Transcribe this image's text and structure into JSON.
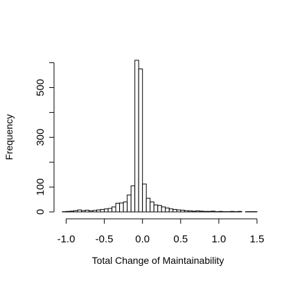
{
  "chart_data": {
    "type": "bar",
    "subtype": "histogram",
    "title": "",
    "xlabel": "Total Change of Maintainability",
    "ylabel": "Frequency",
    "bin_width": 0.05,
    "bin_starts": [
      -1.05,
      -1.0,
      -0.95,
      -0.9,
      -0.85,
      -0.8,
      -0.75,
      -0.7,
      -0.65,
      -0.6,
      -0.55,
      -0.5,
      -0.45,
      -0.4,
      -0.35,
      -0.3,
      -0.25,
      -0.2,
      -0.15,
      -0.1,
      -0.05,
      0.0,
      0.05,
      0.1,
      0.15,
      0.2,
      0.25,
      0.3,
      0.35,
      0.4,
      0.45,
      0.5,
      0.55,
      0.6,
      0.65,
      0.7,
      0.75,
      0.8,
      0.85,
      0.9,
      0.95,
      1.0,
      1.05,
      1.1,
      1.15,
      1.2,
      1.25,
      1.3,
      1.35,
      1.4,
      1.45
    ],
    "values": [
      1,
      2,
      3,
      5,
      8,
      5,
      7,
      4,
      6,
      8,
      10,
      12,
      14,
      20,
      35,
      36,
      40,
      68,
      105,
      610,
      575,
      112,
      55,
      40,
      28,
      26,
      20,
      16,
      12,
      10,
      8,
      7,
      5,
      4,
      3,
      4,
      3,
      2,
      2,
      3,
      1,
      2,
      1,
      1,
      2,
      1,
      2,
      0,
      1,
      1,
      1
    ],
    "x_ticks": [
      -1.0,
      -0.5,
      0.0,
      0.5,
      1.0,
      1.5
    ],
    "x_tick_labels": [
      "-1.0",
      "-0.5",
      "0.0",
      "0.5",
      "1.0",
      "1.5"
    ],
    "xlim": [
      -1.05,
      1.5
    ],
    "y_ticks": [
      0,
      100,
      200,
      300,
      400,
      500,
      600
    ],
    "y_tick_labels": [
      "0",
      "100",
      "",
      "300",
      "",
      "500",
      ""
    ],
    "ylim": [
      0,
      610
    ],
    "grid": false,
    "legend": "none",
    "colors": {
      "bar_fill": "#ffffff",
      "bar_stroke": "#000000"
    }
  }
}
